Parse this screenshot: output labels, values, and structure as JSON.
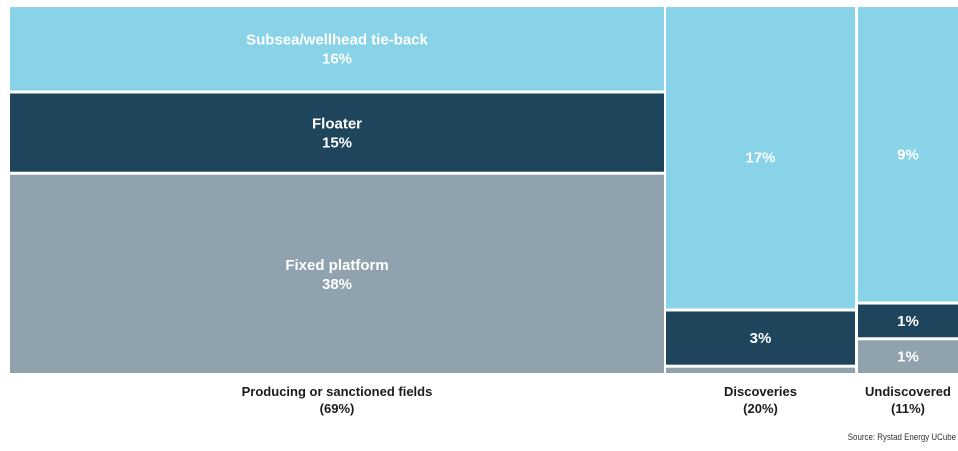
{
  "chart_data": {
    "type": "mosaic",
    "columns": [
      {
        "name": "Producing or sanctioned fields",
        "total": "(69%)",
        "segments": [
          {
            "name": "Subsea/wellhead tie-back",
            "value": 16,
            "label": "16%",
            "color": "#89d3e8"
          },
          {
            "name": "Floater",
            "value": 15,
            "label": "15%",
            "color": "#1e455b"
          },
          {
            "name": "Fixed platform",
            "value": 38,
            "label": "38%",
            "color": "#8fa2ad"
          }
        ]
      },
      {
        "name": "Discoveries",
        "total": "(20%)",
        "segments": [
          {
            "name": "",
            "value": 17,
            "label": "17%",
            "color": "#89d3e8"
          },
          {
            "name": "",
            "value": 3,
            "label": "3%",
            "color": "#1e455b"
          },
          {
            "name": "",
            "value": 0.3,
            "label": "",
            "color": "#8fa2ad"
          }
        ]
      },
      {
        "name": "Undiscovered",
        "total": "(11%)",
        "segments": [
          {
            "name": "",
            "value": 9,
            "label": "9%",
            "color": "#89d3e8"
          },
          {
            "name": "",
            "value": 1,
            "label": "1%",
            "color": "#1e455b"
          },
          {
            "name": "",
            "value": 1,
            "label": "1%",
            "color": "#8fa2ad"
          }
        ]
      }
    ]
  },
  "source": "Source: Rystad Energy UCube"
}
